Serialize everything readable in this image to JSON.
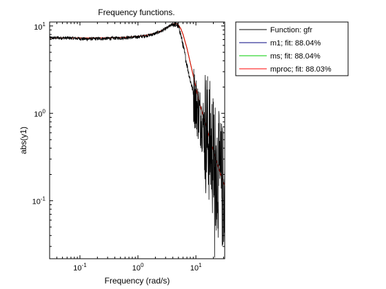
{
  "figure_background": "#ffffff",
  "chart_data": {
    "type": "line",
    "title": "Frequency functions.",
    "xlabel": "Frequency (rad/s)",
    "ylabel": "abs(y1)",
    "x_scale": "log",
    "y_scale": "log",
    "xlim": [
      0.03,
      31.4
    ],
    "ylim": [
      0.0217,
      11.1
    ],
    "grid": false,
    "legend_position": "outside-right-top",
    "x_ticks": [
      {
        "value": 0.1,
        "base": "10",
        "exp": "-1"
      },
      {
        "value": 1,
        "base": "10",
        "exp": "0"
      },
      {
        "value": 10,
        "base": "10",
        "exp": "1"
      }
    ],
    "y_ticks": [
      {
        "value": 0.1,
        "base": "10",
        "exp": "-1"
      },
      {
        "value": 1,
        "base": "10",
        "exp": "0"
      },
      {
        "value": 10,
        "base": "10",
        "exp": "1"
      }
    ],
    "series": [
      {
        "name": "Function: gfr",
        "color": "#000000",
        "style": "noisy",
        "x": [
          0.03,
          0.05,
          0.08,
          0.12,
          0.2,
          0.3,
          0.5,
          0.8,
          1.2,
          1.8,
          2.5,
          3.2,
          3.8,
          4.3,
          4.8,
          5.3,
          6.0,
          7.0,
          8.0,
          9.0,
          10.0,
          11.0,
          12.0,
          14.0,
          16.0,
          18.0,
          20.0,
          22.0,
          25.0,
          28.0,
          31.4
        ],
        "y": [
          7.3,
          7.3,
          7.25,
          7.1,
          7.15,
          7.2,
          7.3,
          7.4,
          7.6,
          8.0,
          8.7,
          9.5,
          10.3,
          10.6,
          10.2,
          8.8,
          6.0,
          3.6,
          2.4,
          1.75,
          1.3,
          1.05,
          0.9,
          0.7,
          0.55,
          0.42,
          0.32,
          0.25,
          0.19,
          0.15,
          0.12
        ]
      },
      {
        "name": "m1; fit: 88.04%",
        "color": "#00007f",
        "style": "smooth",
        "x": [
          0.03,
          0.05,
          0.1,
          0.2,
          0.4,
          0.7,
          1.0,
          1.5,
          2.0,
          2.5,
          3.0,
          3.5,
          4.0,
          4.5,
          5.0,
          5.5,
          6.0,
          7.0,
          8.0,
          9.0,
          10.0,
          11.0,
          12.0,
          14.0,
          16.0,
          18.0,
          20.0,
          22.0,
          25.0,
          28.0,
          31.4
        ],
        "y": [
          7.3,
          7.3,
          7.3,
          7.3,
          7.35,
          7.45,
          7.6,
          7.9,
          8.3,
          8.8,
          9.4,
          10.0,
          10.5,
          10.7,
          10.3,
          9.3,
          8.0,
          5.6,
          3.8,
          2.7,
          2.0,
          1.5,
          1.2,
          0.85,
          0.62,
          0.47,
          0.37,
          0.3,
          0.23,
          0.18,
          0.15
        ]
      },
      {
        "name": "ms; fit: 88.04%",
        "color": "#00cc00",
        "style": "smooth",
        "x": [
          0.03,
          0.05,
          0.1,
          0.2,
          0.4,
          0.7,
          1.0,
          1.5,
          2.0,
          2.5,
          3.0,
          3.5,
          4.0,
          4.5,
          5.0,
          5.5,
          6.0,
          7.0,
          8.0,
          9.0,
          10.0,
          11.0,
          12.0,
          14.0,
          16.0,
          18.0,
          20.0,
          22.0,
          25.0,
          28.0,
          31.4
        ],
        "y": [
          7.3,
          7.3,
          7.3,
          7.3,
          7.35,
          7.45,
          7.6,
          7.9,
          8.3,
          8.8,
          9.4,
          10.0,
          10.5,
          10.7,
          10.3,
          9.3,
          8.0,
          5.6,
          3.8,
          2.7,
          2.0,
          1.5,
          1.2,
          0.85,
          0.62,
          0.47,
          0.37,
          0.3,
          0.23,
          0.18,
          0.15
        ]
      },
      {
        "name": "mproc; fit: 88.03%",
        "color": "#ff0000",
        "style": "smooth",
        "x": [
          0.03,
          0.05,
          0.1,
          0.2,
          0.4,
          0.7,
          1.0,
          1.5,
          2.0,
          2.5,
          3.0,
          3.5,
          4.0,
          4.5,
          5.0,
          5.5,
          6.0,
          7.0,
          8.0,
          9.0,
          10.0,
          11.0,
          12.0,
          14.0,
          16.0,
          18.0,
          20.0,
          22.0,
          25.0,
          28.0,
          31.4
        ],
        "y": [
          7.3,
          7.3,
          7.3,
          7.3,
          7.35,
          7.45,
          7.6,
          7.9,
          8.3,
          8.8,
          9.4,
          10.0,
          10.5,
          10.7,
          10.3,
          9.3,
          8.0,
          5.6,
          3.8,
          2.7,
          2.0,
          1.5,
          1.2,
          0.85,
          0.62,
          0.47,
          0.37,
          0.3,
          0.23,
          0.18,
          0.15
        ]
      }
    ]
  }
}
